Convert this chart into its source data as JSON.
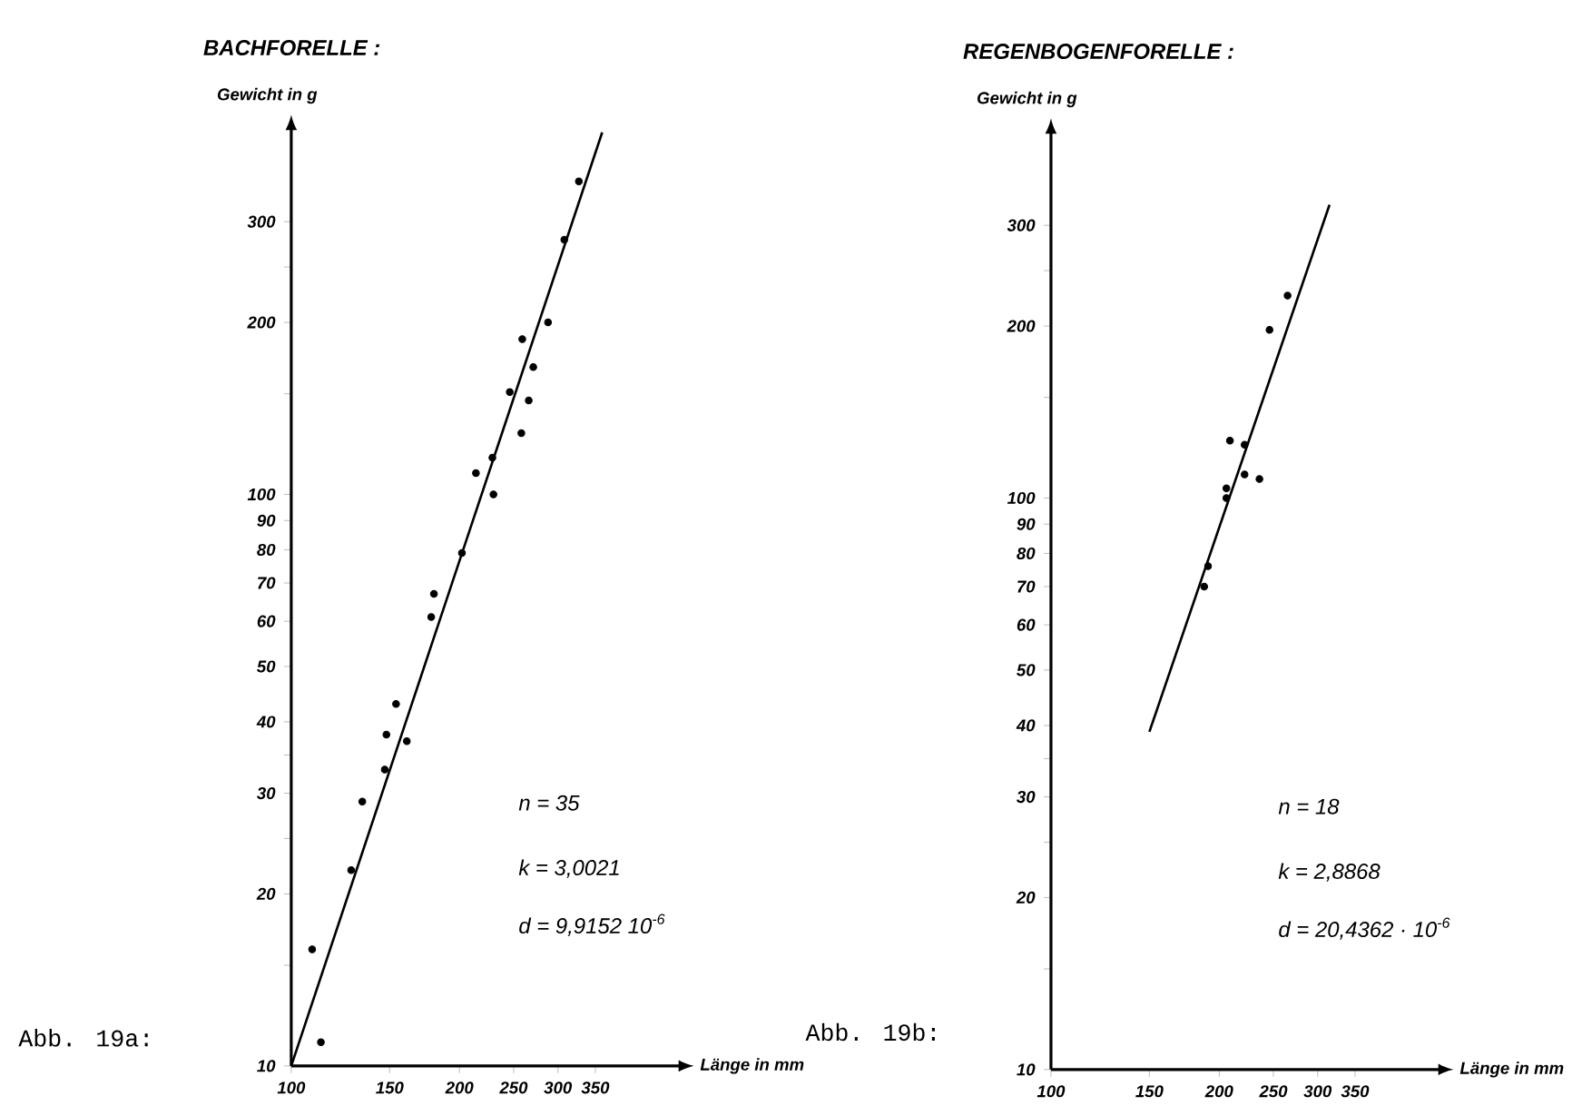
{
  "chart_data": [
    {
      "type": "scatter",
      "title": "BACHFORELLE :",
      "xlabel": "Länge in mm",
      "ylabel": "Gewicht in g",
      "log": "xy",
      "grid": false,
      "xlim": [
        100,
        500
      ],
      "ylim": [
        10,
        440
      ],
      "xticks": [
        100,
        150,
        200,
        250,
        300,
        350
      ],
      "yticks": [
        10,
        {
          "value": 15,
          "label": null
        },
        20,
        {
          "value": 25,
          "label": null
        },
        30,
        {
          "value": 35,
          "label": null
        },
        40,
        50,
        60,
        70,
        80,
        90,
        100,
        {
          "value": 150,
          "label": null
        },
        200,
        {
          "value": 250,
          "label": null
        },
        300
      ],
      "series": [
        {
          "type": "scatter",
          "marker": "circle",
          "color": "#000000",
          "x": [
            327,
            308,
            288,
            259,
            271,
            246,
            266,
            258,
            214,
            229,
            230,
            202,
            180,
            178,
            154,
            148,
            161,
            147,
            134,
            128,
            109,
            113
          ],
          "values": [
            353,
            279,
            200,
            187,
            167,
            151,
            146,
            128,
            109,
            116,
            100,
            79,
            67,
            61,
            43,
            38,
            37,
            33,
            29,
            22,
            16,
            11
          ]
        },
        {
          "type": "line",
          "marker": "none",
          "color": "#000000",
          "line_style": "solid",
          "x": [
            100,
            360
          ],
          "values": [
            10,
            430
          ]
        }
      ],
      "annotations": [
        "n = 35",
        "k = 3,0021",
        "d = 9,9152 10$^{-6}$",
        "Abb. 19a:"
      ]
    },
    {
      "type": "scatter",
      "title": "REGENBOGENFORELLE :",
      "xlabel": "Länge in mm",
      "ylabel": "Gewicht in g",
      "log": "xy",
      "grid": false,
      "xlim": [
        100,
        500
      ],
      "ylim": [
        10,
        440
      ],
      "xticks": [
        100,
        150,
        200,
        250,
        300,
        350
      ],
      "yticks": [
        10,
        {
          "value": 15,
          "label": null
        },
        20,
        {
          "value": 25,
          "label": null
        },
        30,
        {
          "value": 35,
          "label": null
        },
        40,
        50,
        60,
        70,
        80,
        90,
        100,
        {
          "value": 150,
          "label": null
        },
        200,
        {
          "value": 250,
          "label": null
        },
        300
      ],
      "series": [
        {
          "type": "scatter",
          "marker": "circle",
          "color": "#000000",
          "x": [
            265,
            246,
            209,
            222,
            236,
            222,
            206,
            206,
            191,
            188
          ],
          "values": [
            226,
            197,
            126,
            124,
            108,
            110,
            104,
            100,
            76,
            70
          ]
        },
        {
          "type": "line",
          "marker": "none",
          "color": "#000000",
          "line_style": "solid",
          "x": [
            150,
            315
          ],
          "values": [
            39,
            326
          ]
        }
      ],
      "annotations": [
        "n = 18",
        "k = 2,8868",
        "d = 20,4362 · 10$^{-6}$",
        "Abb. 19b:"
      ]
    }
  ]
}
